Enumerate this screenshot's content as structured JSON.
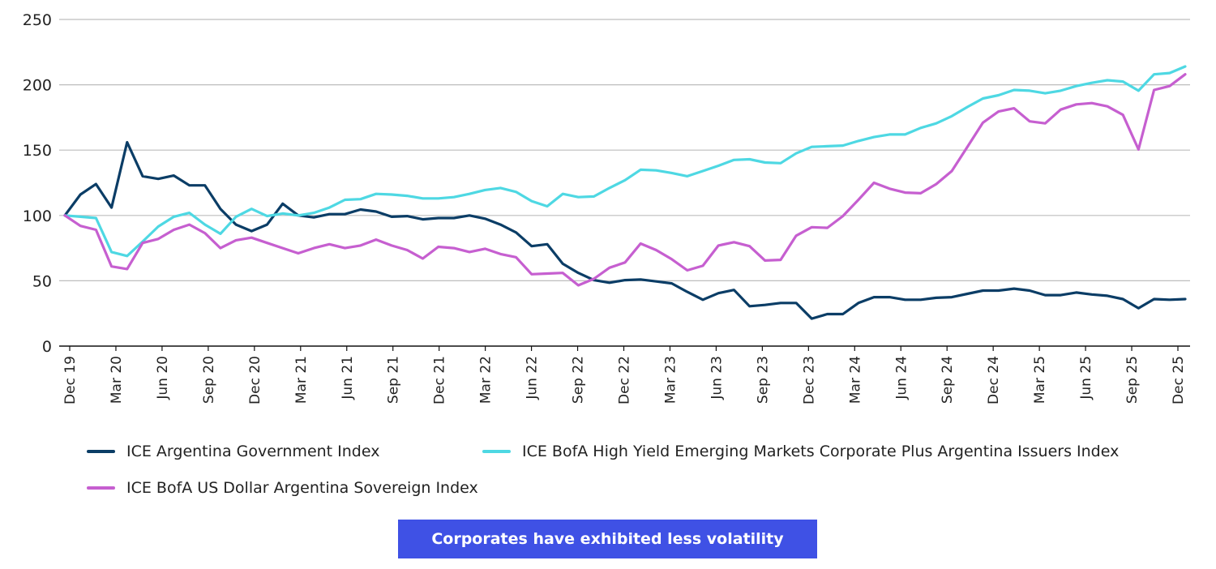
{
  "chart_data": {
    "type": "line",
    "title": "",
    "xlabel": "",
    "ylabel": "",
    "ylim": [
      0,
      250
    ],
    "yticks": [
      0,
      50,
      100,
      150,
      200,
      250
    ],
    "grid": "horizontal",
    "legend_position": "bottom",
    "x": [
      "Dec 19",
      "Jan 20",
      "Feb 20",
      "Mar 20",
      "Apr 20",
      "May 20",
      "Jun 20",
      "Jul 20",
      "Aug 20",
      "Sep 20",
      "Oct 20",
      "Nov 20",
      "Dec 20",
      "Jan 21",
      "Feb 21",
      "Mar 21",
      "Apr 21",
      "May 21",
      "Jun 21",
      "Jul 21",
      "Aug 21",
      "Sep 21",
      "Oct 21",
      "Nov 21",
      "Dec 21",
      "Jan 22",
      "Feb 22",
      "Mar 22",
      "Apr 22",
      "May 22",
      "Jun 22",
      "Jul 22",
      "Aug 22",
      "Sep 22",
      "Oct 22",
      "Nov 22",
      "Dec 22",
      "Jan 23",
      "Feb 23",
      "Mar 23",
      "Apr 23",
      "May 23",
      "Jun 23",
      "Jul 23",
      "Aug 23",
      "Sep 23",
      "Oct 23",
      "Nov 23",
      "Dec 23",
      "Jan 24",
      "Feb 24",
      "Mar 24",
      "Apr 24",
      "May 24",
      "Jun 24",
      "Jul 24",
      "Aug 24",
      "Sep 24",
      "Oct 24",
      "Nov 24",
      "Dec 24",
      "Jan 25",
      "Feb 25",
      "Mar 25",
      "Apr 25",
      "May 25",
      "Jun 25",
      "Jul 25",
      "Aug 25",
      "Sep 25",
      "Oct 25",
      "Nov 25",
      "Dec 25"
    ],
    "xtick_labels": [
      "Dec 19",
      "Mar 20",
      "Jun 20",
      "Sep 20",
      "Dec 20",
      "Mar 21",
      "Jun 21",
      "Sep 21",
      "Dec 21",
      "Mar 22",
      "Jun 22",
      "Sep 22",
      "Dec 22",
      "Mar 23",
      "Jun 23",
      "Sep 23",
      "Dec 23",
      "Mar 24",
      "Jun 24",
      "Sep 24",
      "Dec 24",
      "Mar 25",
      "Jun 25",
      "Sep 25",
      "Dec 25"
    ],
    "series": [
      {
        "name": "ICE Argentina Government Index",
        "color": "#0B3D66",
        "values": [
          100,
          116,
          124,
          106,
          156,
          130,
          128,
          130.5,
          123,
          123,
          105,
          93,
          88,
          93,
          109,
          100,
          98.5,
          101,
          101,
          104.5,
          103,
          99,
          99.5,
          97,
          98,
          98,
          100,
          97.5,
          93,
          87,
          76.5,
          78,
          63,
          56,
          50.5,
          48.5,
          50.5,
          51,
          49.5,
          48,
          41.5,
          35.5,
          40.5,
          43,
          30.5,
          31.5,
          33,
          33,
          21,
          24.5,
          24.5,
          33,
          37.5,
          37.5,
          35.5,
          35.5,
          37,
          37.5,
          40,
          42.5,
          42.5,
          44,
          42.5,
          39,
          39,
          41,
          39.5,
          38.5,
          36,
          29,
          36,
          35.5,
          36
        ]
      },
      {
        "name": "ICE BofA High Yield Emerging Markets Corporate Plus Argentina Issuers Index",
        "color": "#4ED8E3",
        "values": [
          100,
          99,
          98,
          72,
          69,
          80,
          91.5,
          99,
          102,
          93,
          86,
          99,
          105,
          99.5,
          101.5,
          100,
          102,
          106,
          112,
          112.5,
          116.5,
          116,
          115,
          113,
          113,
          114,
          116.5,
          119.5,
          121,
          118,
          111,
          107,
          116.5,
          114,
          114.5,
          121,
          127,
          135,
          134.5,
          132.5,
          130,
          134,
          138,
          142.5,
          143,
          140.5,
          140,
          147.5,
          152.5,
          153,
          153.5,
          157,
          160,
          162,
          162,
          167,
          170.5,
          176,
          183,
          189.5,
          192,
          196,
          195.5,
          193.5,
          195.5,
          199,
          201.5,
          203.5,
          202.5,
          195.5,
          208,
          209,
          214
        ]
      },
      {
        "name": "ICE BofA US Dollar Argentina Sovereign Index",
        "color": "#C65FD0",
        "values": [
          100,
          92,
          89,
          61,
          59,
          79,
          82,
          89,
          93,
          86.5,
          75,
          81,
          83,
          79,
          75,
          71,
          75,
          78,
          75,
          77,
          81.5,
          77,
          73.5,
          67,
          76,
          75,
          72,
          74.5,
          70.5,
          68,
          55,
          55.5,
          56,
          46.5,
          51.5,
          60,
          64,
          78.5,
          73.5,
          66.5,
          58,
          61.5,
          77,
          79.5,
          76.5,
          65.5,
          66,
          84.5,
          91,
          90.5,
          99.5,
          112,
          125,
          120.5,
          117.5,
          117,
          124,
          134,
          152.5,
          171,
          179.5,
          182,
          172,
          170.5,
          181,
          185,
          186,
          183.5,
          177,
          150.5,
          196,
          199,
          208
        ]
      }
    ]
  },
  "legend": {
    "items": [
      {
        "label": "ICE Argentina Government Index",
        "color": "#0B3D66"
      },
      {
        "label": "ICE BofA High Yield Emerging Markets Corporate Plus Argentina Issuers Index",
        "color": "#4ED8E3"
      },
      {
        "label": "ICE BofA US Dollar Argentina Sovereign Index",
        "color": "#C65FD0"
      }
    ]
  },
  "callout": {
    "label": "Corporates have exhibited less volatility",
    "color": "#3F51E5"
  }
}
